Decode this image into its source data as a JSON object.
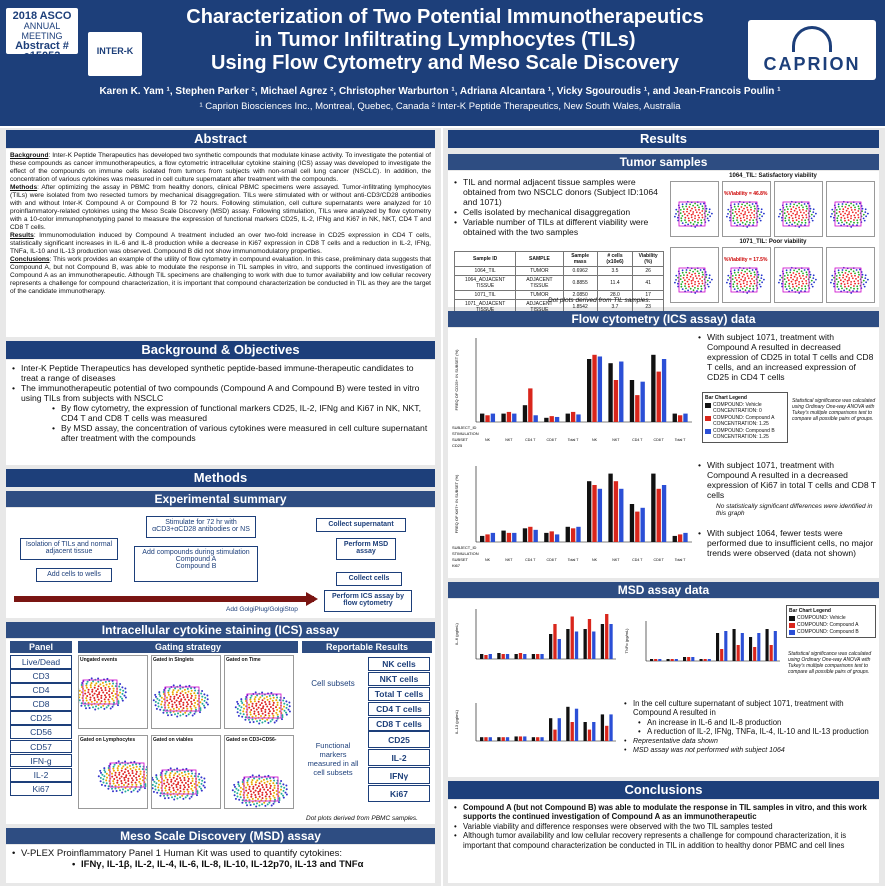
{
  "header": {
    "asco_year": "2018",
    "asco_name": "ASCO",
    "asco_sub": "ANNUAL MEETING",
    "abstract_label": "Abstract #",
    "abstract_no": "e15052",
    "partner_logo": "INTER-K",
    "company_logo": "CAPRION",
    "title_1": "Characterization of Two Potential Immunotherapeutics",
    "title_2": "in Tumor Infiltrating Lymphocytes (TILs)",
    "title_3": "Using Flow Cytometry and Meso Scale Discovery",
    "authors": "Karen K. Yam ¹, Stephen Parker ², Michael Agrez ², Christopher Warburton ¹, Adriana Alcantara ¹, Vicky Sgouroudis ¹, and Jean-Francois Poulin ¹",
    "affiliations": "¹ Caprion Biosciences Inc., Montreal, Quebec, Canada  ² Inter-K Peptide Therapeutics, New South Wales, Australia"
  },
  "abstract": {
    "heading": "Abstract",
    "bg_label": "Background",
    "bg_text": ": Inter-K Peptide Therapeutics has developed two synthetic compounds that modulate kinase activity. To investigate the potential of these compounds as cancer immunotherapeutics, a flow cytometric intracellular cytokine staining (ICS) assay was developed to investigate the effect of the compounds on immune cells isolated from tumors from subjects with non-small cell lung cancer (NSCLC). In addition, the concentration of various cytokines was measured in cell culture supernatant after treatment with the compounds.",
    "methods_label": "Methods",
    "methods_text": ": After optimizing the assay in PBMC from healthy donors, clinical PBMC specimens were assayed. Tumor-infiltrating lymphocytes (TILs) were isolated from two resected tumors by mechanical disaggregation. TILs were stimulated with or without anti-CD3/CD28 antibodies with and without Inter-K Compound A or Compound B for 72 hours. Following stimulation, cell culture supernatants were analyzed for 10 proinflammatory-related cytokines using the Meso Scale Discovery (MSD) assay. Following stimulation, TILs were analyzed by flow cytometry with a 10-color immunophenotyping panel to measure the expression of functional markers CD25, IL-2, IFNg and Ki67 in NK, NKT, CD4 T and CD8 T cells.",
    "results_label": "Results",
    "results_text": ": Immunomodulation induced by Compound A treatment included an over two-fold increase in CD25 expression in CD4 T cells, statistically significant increases in IL-6 and IL-8 production while a decrease in Ki67 expression in CD8 T cells and a reduction in IL-2, IFNg, TNFa, IL-10 and IL-13 production was observed. Compound B did not show immunomodulatory properties.",
    "concl_label": "Conclusions",
    "concl_text": ": This work provides an example of the utility of flow cytometry in compound evaluation. In this case, preliminary data suggests that Compound A, but not Compound B, was able to modulate the response in TIL samples in vitro, and supports the continued investigation of Compound A as an immunotherapeutic. Although TIL specimens are challenging to work with due to tumor availability and low cellular recovery represents a challenge for compound characterization, it is important that compound characterization be conducted in TIL as they are the target of the candidate immunotherapy."
  },
  "background": {
    "heading": "Background & Objectives",
    "b1": "Inter-K Peptide Therapeutics has developed synthetic peptide-based immune-therapeutic candidates to treat a range of diseases",
    "b2": "The immunotherapeutic potential of two compounds (Compound A and Compound B) were tested in vitro using TILs from subjects with NSCLC",
    "b3": "By flow cytometry, the expression of functional markers CD25, IL-2, IFNg and Ki67 in NK, NKT, CD4 T and CD8 T cells was measured",
    "b4": "By MSD assay, the concentration of various cytokines were measured in cell culture supernatant after treatment with the compounds"
  },
  "methods": {
    "heading": "Methods",
    "exp_heading": "Experimental summary",
    "isolation": "Isolation of TILs and normal adjacent tissue",
    "add_cells": "Add cells to wells",
    "stimulate": "Stimulate for 72 hr with αCD3+αCD28 antibodies or NS",
    "add_compounds": "Add compounds during stimulation",
    "comp_a": "Compound A",
    "comp_b": "Compound B",
    "collect_sup": "Collect supernatant",
    "perform_msd": "Perform MSD assay",
    "collect_cells": "Collect cells",
    "perform_ics": "Perform ICS assay by flow cytometry",
    "golgi": "Add GolgiPlug/GolgiStop"
  },
  "ics": {
    "heading": "Intracellular cytokine staining (ICS) assay",
    "panel_label": "Panel",
    "panel": [
      "Live/Dead",
      "CD3",
      "CD4",
      "CD8",
      "CD25",
      "CD56",
      "CD57",
      "IFN-g",
      "IL-2",
      "Ki67"
    ],
    "gating_label": "Gating strategy",
    "gates": [
      "Ungated events",
      "Gated in Singlets",
      "Gated on Time",
      "Gated on Lymphocytes",
      "Gated on viables",
      "Gated on CD3+CD56-"
    ],
    "gate_axes": [
      "FSC-H",
      "FSC-A",
      "SSC-A",
      "Time",
      "CD3",
      "CD56",
      "CD4",
      "CD8"
    ],
    "gate_labels": [
      "Lymphocytes",
      "Viables",
      "NK Cells",
      "NKT Cells",
      "CD4 T Cells",
      "CD8 T Cells"
    ],
    "dot_note": "Dot plots derived from PBMC samples.",
    "reportable_label": "Reportable Results",
    "cell_subsets_label": "Cell subsets",
    "cell_subsets": [
      "NK cells",
      "NKT cells",
      "Total T cells",
      "CD4 T cells",
      "CD8 T cells"
    ],
    "markers_label": "Functional markers measured in all cell subsets",
    "markers": [
      "CD25",
      "IL-2",
      "IFNγ",
      "Ki67"
    ]
  },
  "msd_method": {
    "heading": "Meso Scale Discovery (MSD) assay",
    "b1": "V-PLEX Proinflammatory Panel 1 Human Kit was used to quantify cytokines:",
    "b2": "IFNγ, IL-1β, IL-2, IL-4, IL-6, IL-8, IL-10, IL-12p70, IL-13 and TNFα"
  },
  "results": {
    "heading": "Results",
    "tumor": {
      "heading": "Tumor samples",
      "b1": "TIL and normal adjacent tissue samples were obtained from two NSCLC donors (Subject ID:1064 and 1071)",
      "b2": "Cells isolated by mechanical disaggregation",
      "b3": "Variable number of TILs at different viability were obtained with the two samples",
      "table_headers": [
        "Sample ID",
        "SAMPLE",
        "Sample mass",
        "# cells (x10e6)",
        "Viability (%)"
      ],
      "table_rows": [
        [
          "1064_TIL",
          "TUMOR",
          "0.6962",
          "3.5",
          "26"
        ],
        [
          "1064_ADJACENT TISSUE",
          "ADJACENT TISSUE",
          "0.8855",
          "11.4",
          "41"
        ],
        [
          "1071_TIL",
          "TUMOR",
          "2.0850",
          "28.0",
          "17"
        ],
        [
          "1071_ADJACENT TISSUE",
          "ADJACENT TISSUE",
          "1.8542",
          "3.7",
          "23"
        ]
      ],
      "dot_note": "Dot plots derived from TIL samples.",
      "sat_label": "1064_TIL: Satisfactory viability",
      "poor_label": "1071_TIL: Poor viability",
      "sat_value": "%Viability = 46.8%",
      "poor_value": "%Viability = 17.5%"
    },
    "flow": {
      "heading": "Flow cytometry (ICS assay) data",
      "b1": "With subject 1071, treatment with Compound A resulted in decreased expression of CD25 in total T cells and CD8 T cells, and an increased expression of CD25 in CD4 T cells",
      "b2": "With subject 1071, treatment with Compound A resulted in a decreased expression of Ki67 in total T cells and CD8 T cells",
      "b2_note": "No statistically significant differences were identified in this graph",
      "b3": "With subject 1064, fewer tests were performed due to insufficient cells, no major trends were observed (data not shown)",
      "legend_title": "Bar Chart Legend",
      "legend_items": [
        "COMPOUND: Vehicle CONCENTRATION: 0",
        "COMPOUND: Compound A CONCENTRATION: 1.25",
        "COMPOUND: Compound B CONCENTRATION: 1.25"
      ],
      "stat_note": "Statistical significance was calculated using Ordinary One-way ANOVA with Tukey's multiple comparisons test to compare all possible pairs of groups.",
      "y1": "FREQ OF CD25+ IN SUBSET (%)",
      "y2": "FREQ OF Ki67+ IN SUBSET (%)",
      "row_labels1": [
        "SUBJECT_ID",
        "STIMULATION",
        "SUBSET",
        "CD25"
      ],
      "row_labels2": [
        "SUBJECT_ID",
        "STIMULATION",
        "SUBSET",
        "Ki67"
      ],
      "categories": [
        "NK",
        "NKT",
        "CD4 T",
        "CD8 T",
        "Total T",
        "NK",
        "NKT",
        "CD4 T",
        "CD8 T",
        "Total T"
      ]
    },
    "msd": {
      "heading": "MSD assay data",
      "legend_title": "Bar Chart Legend",
      "legend_items": [
        "COMPOUND: Vehicle",
        "COMPOUND: Compound A",
        "COMPOUND: Compound B"
      ],
      "stat_note": "Statistical significance was calculated using Ordinary One-way ANOVA with Tukey's multiple comparisons test to compare all possible pairs of groups.",
      "y_labels": [
        "IL-6 (pg/mL)",
        "TNFα (pg/mL)",
        "IL-13 (pg/mL)"
      ],
      "b1": "In the cell culture supernatant of subject 1071, treatment with Compound A resulted in",
      "b1a": "An increase in IL-6 and IL-8 production",
      "b1b": "A reduction of IL-2, IFNg, TNFa, IL-4, IL-10 and IL-13 production",
      "n1": "Representative data shown",
      "n2": "MSD assay was not performed with subject 1064"
    }
  },
  "conclusions": {
    "heading": "Conclusions",
    "b1": "Compound A (but not Compound B) was able to modulate the response in TIL samples in vitro, and this work supports the continued investigation of Compound A as an immunotherapeutic",
    "b2": "Variable viability and difference responses were observed with the two TIL samples tested",
    "b3": "Although tumor availability and low cellular recovery represents a challenge for compound characterization, it is important that compound characterization be conducted in TIL in addition to healthy donor PBMC and cell lines"
  },
  "colors": {
    "navy": "#1d3f7a",
    "vehicle": "#111111",
    "compound_a": "#d9261c",
    "compound_b": "#2b4fd6"
  }
}
